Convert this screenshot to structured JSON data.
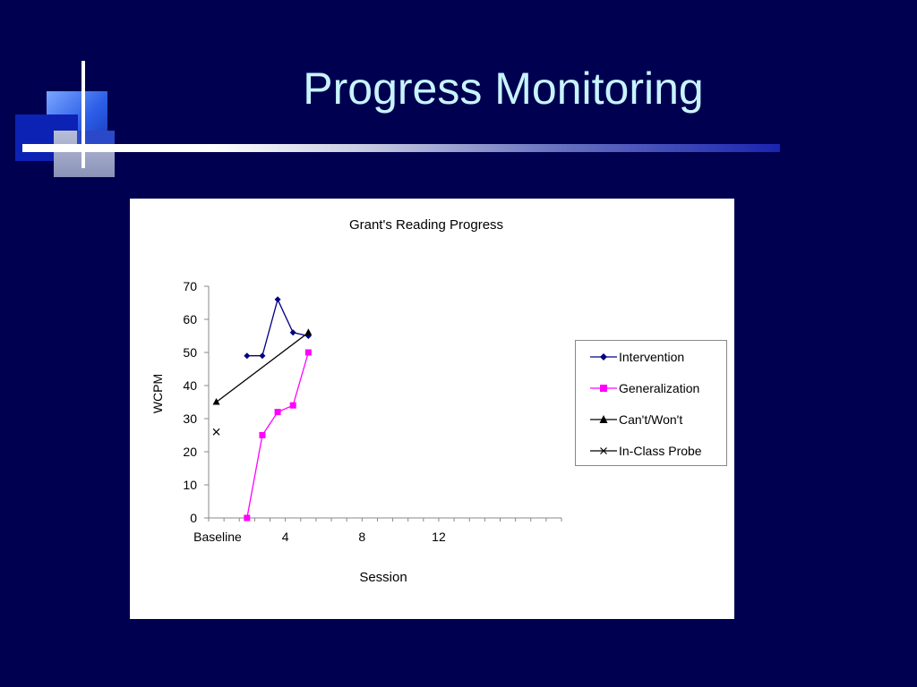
{
  "slide": {
    "title": "Progress Monitoring"
  },
  "colors": {
    "background": "#000050",
    "title": "#c8f4ff"
  },
  "chart_data": {
    "type": "line",
    "title": "Grant's Reading Progress",
    "xlabel": "Session",
    "ylabel": "WCPM",
    "ylim": [
      0,
      70
    ],
    "yticks": [
      0,
      10,
      20,
      30,
      40,
      50,
      60,
      70
    ],
    "xlim": [
      0,
      23
    ],
    "x_tick_labels": [
      {
        "x": 0,
        "label": "Baseline"
      },
      {
        "x": 5,
        "label": "4"
      },
      {
        "x": 10,
        "label": "8"
      },
      {
        "x": 15,
        "label": "12"
      }
    ],
    "grid": false,
    "legend_position": "right",
    "series": [
      {
        "name": "Intervention",
        "color": "#000080",
        "marker": "diamond",
        "points": [
          [
            2.5,
            49
          ],
          [
            3.5,
            49
          ],
          [
            4.5,
            66
          ],
          [
            5.5,
            56
          ],
          [
            6.5,
            55
          ]
        ]
      },
      {
        "name": "Generalization",
        "color": "#ff00ff",
        "marker": "square",
        "points": [
          [
            2.5,
            0
          ],
          [
            3.5,
            25
          ],
          [
            4.5,
            32
          ],
          [
            5.5,
            34
          ],
          [
            6.5,
            50
          ]
        ]
      },
      {
        "name": "Can't/Won't",
        "color": "#000000",
        "marker": "triangle",
        "points": [
          [
            0.5,
            35
          ],
          [
            6.5,
            56
          ]
        ]
      },
      {
        "name": "In-Class Probe",
        "color": "#000000",
        "marker": "x",
        "points": [
          [
            0.5,
            26
          ]
        ]
      }
    ]
  }
}
